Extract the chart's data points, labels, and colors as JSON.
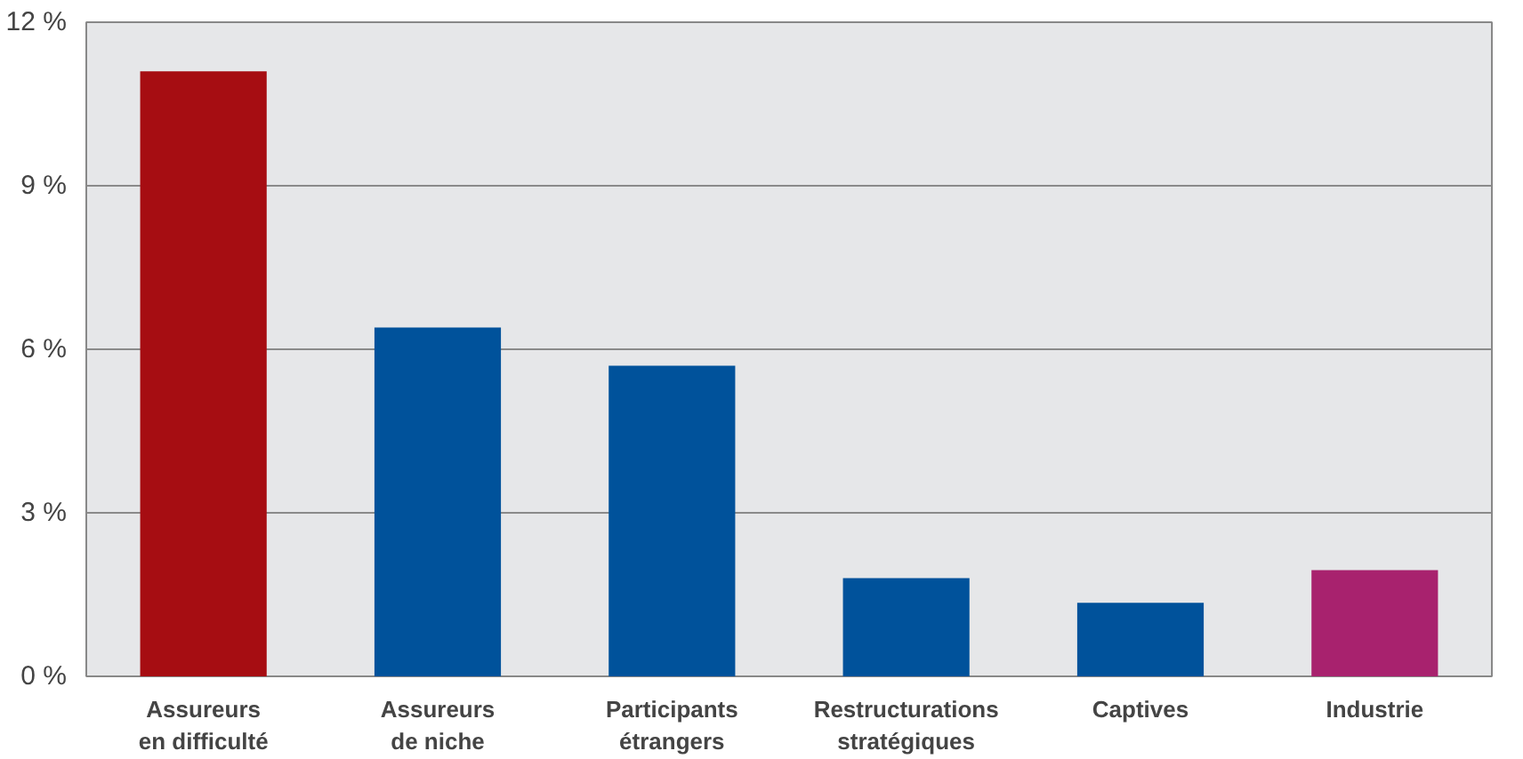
{
  "chart_data": {
    "type": "bar",
    "categories": [
      "Assureurs\nen difficulté",
      "Assureurs\nde niche",
      "Participants\nétrangers",
      "Restructurations\nstratégiques",
      "Captives",
      "Industrie"
    ],
    "values": [
      11.1,
      6.4,
      5.7,
      1.8,
      1.35,
      1.95
    ],
    "colors": [
      "#a60d12",
      "#00529b",
      "#00529b",
      "#00529b",
      "#00529b",
      "#a8226e"
    ],
    "ylim": [
      0,
      12
    ],
    "yticks": [
      {
        "value": 0,
        "label": "0 %"
      },
      {
        "value": 3,
        "label": "3 %"
      },
      {
        "value": 6,
        "label": "6 %"
      },
      {
        "value": 9,
        "label": "9 %"
      },
      {
        "value": 12,
        "label": "12 %"
      }
    ],
    "grid": "y"
  }
}
